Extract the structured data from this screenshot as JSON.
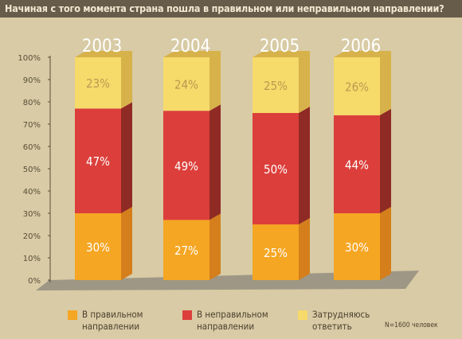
{
  "title": "Начиная с того момента страна пошла в правильном или неправильном направлении?",
  "note": "N=1600 человек",
  "colors": {
    "background": "#d8cba5",
    "title_bar": "#675c49",
    "title_text": "#f2e9d2",
    "floor": "#9e9785",
    "axis_text": "#5a4e3b",
    "year_text": "#ffffff",
    "value_text": "#ffffff",
    "orange": "#f5a623",
    "orange_side": "#d47f1c",
    "red": "#dc3f3b",
    "red_side": "#8f2a24",
    "yellow": "#f6da6a",
    "yellow_side": "#d7b24a",
    "yellow_label": "#b99a51"
  },
  "legend": [
    {
      "label_line1": "В правильном",
      "label_line2": "направлении",
      "color": "#f5a623"
    },
    {
      "label_line1": "В неправильном",
      "label_line2": "направлении",
      "color": "#dc3f3b"
    },
    {
      "label_line1": "Затрудняюсь",
      "label_line2": "ответить",
      "color": "#f6da6a"
    }
  ],
  "chart_data": {
    "type": "bar",
    "stacked": true,
    "categories": [
      "2003",
      "2004",
      "2005",
      "2006"
    ],
    "series": [
      {
        "name": "В правильном направлении",
        "values": [
          30,
          27,
          25,
          30
        ]
      },
      {
        "name": "В неправильном направлении",
        "values": [
          47,
          49,
          50,
          44
        ]
      },
      {
        "name": "Затрудняюсь ответить",
        "values": [
          23,
          24,
          25,
          26
        ]
      }
    ],
    "value_labels": [
      [
        "30%",
        "27%",
        "25%",
        "30%"
      ],
      [
        "47%",
        "49%",
        "50%",
        "44%"
      ],
      [
        "23%",
        "24%",
        "25%",
        "26%"
      ]
    ],
    "ylim": [
      0,
      100
    ],
    "yticks": [
      "0%",
      "10%",
      "20%",
      "30%",
      "40%",
      "50%",
      "60%",
      "70%",
      "80%",
      "90%",
      "100%"
    ]
  }
}
